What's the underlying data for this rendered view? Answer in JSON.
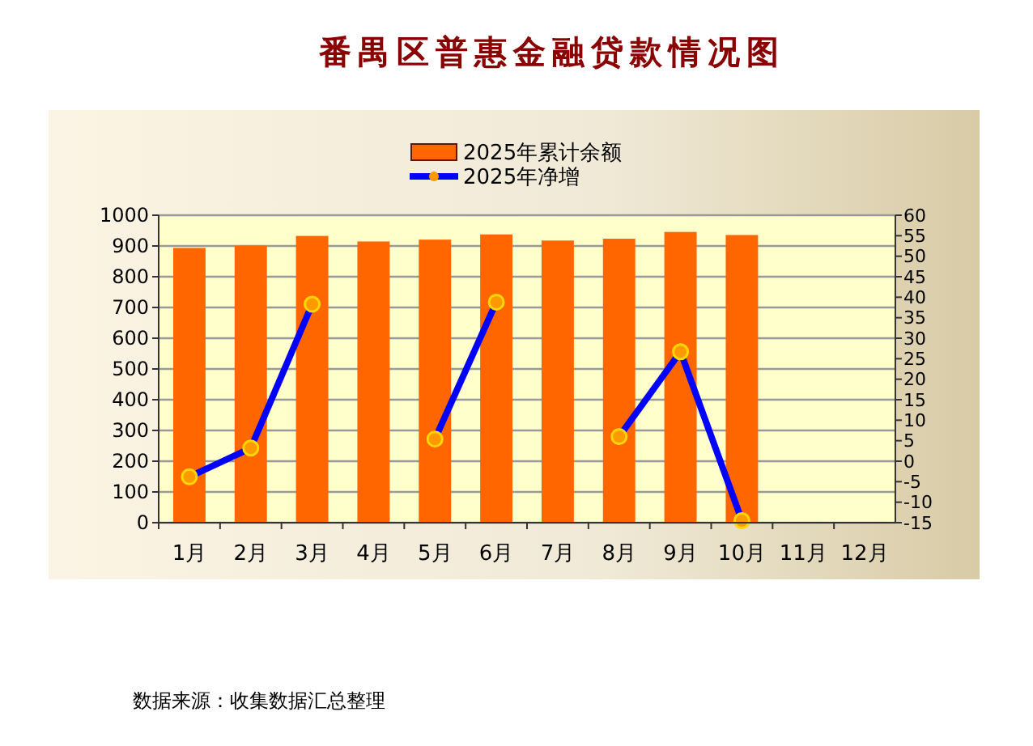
{
  "chart_data": {
    "type": "bar",
    "title": "番禺区普惠金融贷款情况图",
    "categories": [
      "1月",
      "2月",
      "3月",
      "4月",
      "5月",
      "6月",
      "7月",
      "8月",
      "9月",
      "10月",
      "11月",
      "12月"
    ],
    "series": [
      {
        "name": "2025年累计余额",
        "type": "bar",
        "color": "#ff6600",
        "values": [
          891,
          898,
          930,
          912,
          918,
          935,
          915,
          921,
          943,
          933,
          null,
          null
        ]
      },
      {
        "name": "2025年净增",
        "type": "line",
        "axis": "y2",
        "color": "#0000ff",
        "marker": "circle",
        "values": [
          -3.8,
          3.2,
          38.3,
          null,
          5.4,
          38.8,
          null,
          6.0,
          26.7,
          -14.5,
          null,
          null
        ]
      }
    ],
    "ylim": [
      0,
      1000
    ],
    "yticks": [
      0,
      100,
      200,
      300,
      400,
      500,
      600,
      700,
      800,
      900,
      1000
    ],
    "y2lim": [
      -15,
      60
    ],
    "y2ticks": [
      -15,
      -10,
      -5,
      0,
      5,
      10,
      15,
      20,
      25,
      30,
      35,
      40,
      45,
      50,
      55,
      60
    ],
    "grid": "y",
    "legend": "top",
    "annotations": [
      "数据来源：收集数据汇总整理"
    ]
  }
}
